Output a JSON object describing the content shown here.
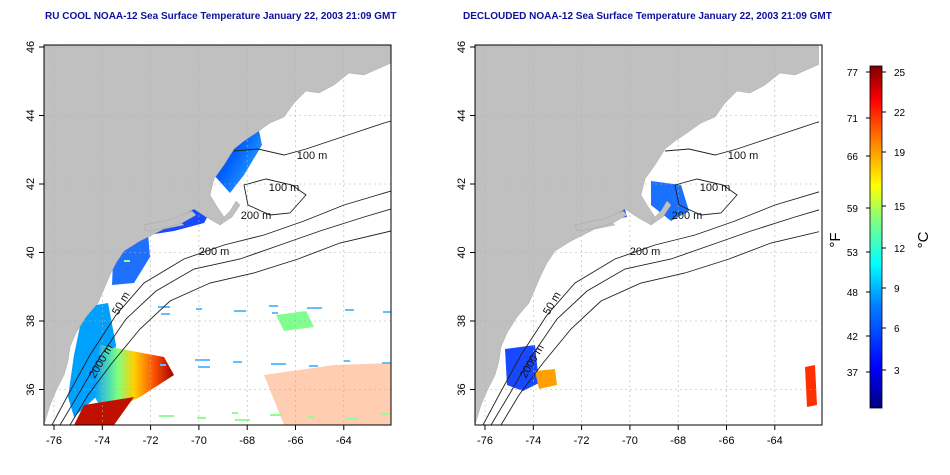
{
  "panels": [
    {
      "title": "RU COOL NOAA-12 Sea Surface Temperature January 22, 2003 21:09 GMT",
      "contour_labels": [
        "100 m",
        "100 m",
        "200 m",
        "200 m",
        "50 m",
        "2000 m"
      ]
    },
    {
      "title": "DECLOUDED NOAA-12 Sea Surface Temperature January 22, 2003 21:09 GMT",
      "contour_labels": [
        "100 m",
        "100 m",
        "200 m",
        "200 m",
        "50 m",
        "2000 m"
      ]
    }
  ],
  "axes": {
    "x_ticks": [
      "-76",
      "-74",
      "-72",
      "-70",
      "-68",
      "-66",
      "-64"
    ],
    "y_ticks": [
      "46",
      "44",
      "42",
      "40",
      "38",
      "36"
    ]
  },
  "colorbar": {
    "unit_left": "°F",
    "unit_right": "°C",
    "f_ticks": [
      "77",
      "71",
      "66",
      "59",
      "53",
      "48",
      "42",
      "37"
    ],
    "c_ticks": [
      "25",
      "22",
      "19",
      "15",
      "12",
      "9",
      "6",
      "3"
    ],
    "colors": [
      "#00007f",
      "#0000ff",
      "#0080ff",
      "#00ffff",
      "#80ff80",
      "#ffff00",
      "#ff8000",
      "#ff0000",
      "#7f0000"
    ]
  },
  "colors": {
    "land": "#c0c0c0",
    "ocean": "#ffffff",
    "title": "#1010a0",
    "contour": "#202020",
    "grid": "#b0b0b0"
  }
}
